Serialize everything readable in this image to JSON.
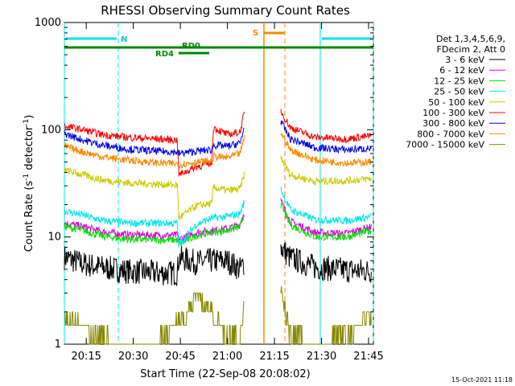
{
  "chart_data": {
    "type": "line",
    "title": "RHESSI Observing Summary Count Rates",
    "xlabel": "Start Time (22-Sep-08 20:08:02)",
    "ylabel_main": "Count Rate (s",
    "ylabel_sup1": "-1",
    "ylabel_mid": " detector",
    "ylabel_sup2": "-1",
    "ylabel_end": ")",
    "y_scale": "log",
    "ylim": [
      1,
      1000
    ],
    "xlim_minutes": [
      0,
      98.5
    ],
    "x_ticks": [
      {
        "label": "20:15",
        "t": 6.97
      },
      {
        "label": "20:30",
        "t": 21.97
      },
      {
        "label": "20:45",
        "t": 36.97
      },
      {
        "label": "21:00",
        "t": 51.97
      },
      {
        "label": "21:15",
        "t": 66.97
      },
      {
        "label": "21:30",
        "t": 81.97
      },
      {
        "label": "21:45",
        "t": 96.97
      }
    ],
    "y_ticks": [
      {
        "label": "1",
        "v": 1
      },
      {
        "label": "10",
        "v": 10
      },
      {
        "label": "100",
        "v": 100
      },
      {
        "label": "1000",
        "v": 1000
      }
    ],
    "legend_header": [
      "Det 1,3,4,5,6,9,",
      "FDecim 2, Att 0"
    ],
    "series": [
      {
        "name": "3 - 6 keV",
        "color": "#000000",
        "points": [
          [
            0,
            6.5
          ],
          [
            6,
            5.6
          ],
          [
            12,
            5.2
          ],
          [
            20,
            4.8
          ],
          [
            30,
            4.6
          ],
          [
            36,
            4.6
          ],
          [
            36.5,
            6.4
          ],
          [
            42,
            5.8
          ],
          [
            47,
            6.0
          ],
          [
            52,
            6.0
          ],
          [
            56,
            5.0
          ],
          [
            57.5,
            5.8
          ],
          [
            59,
            null
          ],
          [
            68.5,
            null
          ],
          [
            69,
            8
          ],
          [
            72,
            6.4
          ],
          [
            80,
            5.2
          ],
          [
            90,
            4.9
          ],
          [
            98,
            4.8
          ]
        ]
      },
      {
        "name": "6 - 12 keV",
        "color": "#dd00dd",
        "points": [
          [
            0,
            13.5
          ],
          [
            6,
            12.5
          ],
          [
            12,
            11.2
          ],
          [
            20,
            10.5
          ],
          [
            30,
            10.4
          ],
          [
            36,
            10.4
          ],
          [
            36.5,
            9.5
          ],
          [
            42,
            11
          ],
          [
            47,
            11.5
          ],
          [
            52,
            12
          ],
          [
            56,
            13
          ],
          [
            57.5,
            18
          ],
          [
            59,
            null
          ],
          [
            68.5,
            null
          ],
          [
            69,
            22
          ],
          [
            72,
            14
          ],
          [
            80,
            11
          ],
          [
            90,
            10.8
          ],
          [
            98,
            12.5
          ]
        ]
      },
      {
        "name": "12 - 25 keV",
        "color": "#00dd00",
        "points": [
          [
            0,
            12.5
          ],
          [
            6,
            11.5
          ],
          [
            12,
            10.2
          ],
          [
            20,
            9.5
          ],
          [
            30,
            9.4
          ],
          [
            36,
            9.4
          ],
          [
            36.5,
            8.5
          ],
          [
            42,
            10.3
          ],
          [
            47,
            11
          ],
          [
            52,
            11.5
          ],
          [
            56,
            12.5
          ],
          [
            57.5,
            17
          ],
          [
            59,
            null
          ],
          [
            68.5,
            null
          ],
          [
            69,
            20
          ],
          [
            72,
            13
          ],
          [
            80,
            10
          ],
          [
            90,
            10
          ],
          [
            98,
            11.5
          ]
        ]
      },
      {
        "name": "25 - 50 keV",
        "color": "#00e6e6",
        "points": [
          [
            0,
            17.5
          ],
          [
            6,
            16
          ],
          [
            12,
            14.2
          ],
          [
            20,
            13.5
          ],
          [
            30,
            13.4
          ],
          [
            36,
            13.4
          ],
          [
            36.5,
            8.5
          ],
          [
            42,
            13
          ],
          [
            47,
            15
          ],
          [
            52,
            15.5
          ],
          [
            56,
            16.5
          ],
          [
            57.5,
            22
          ],
          [
            59,
            null
          ],
          [
            68.5,
            null
          ],
          [
            69,
            28
          ],
          [
            72,
            18
          ],
          [
            80,
            14.5
          ],
          [
            90,
            14.2
          ],
          [
            98,
            15.5
          ]
        ]
      },
      {
        "name": "50 - 100 keV",
        "color": "#cccc00",
        "points": [
          [
            0,
            42
          ],
          [
            6,
            38
          ],
          [
            12,
            34
          ],
          [
            20,
            32
          ],
          [
            30,
            31
          ],
          [
            36,
            30.5
          ],
          [
            36.5,
            15
          ],
          [
            42,
            19.5
          ],
          [
            47,
            20.5
          ],
          [
            47.5,
            29
          ],
          [
            52,
            27
          ],
          [
            56,
            28
          ],
          [
            57.5,
            40
          ],
          [
            59,
            null
          ],
          [
            68.5,
            null
          ],
          [
            69,
            55
          ],
          [
            72,
            38
          ],
          [
            80,
            33
          ],
          [
            90,
            33.5
          ],
          [
            98,
            35
          ]
        ]
      },
      {
        "name": "100 - 300 keV",
        "color": "#ff0000",
        "points": [
          [
            0,
            108
          ],
          [
            6,
            100
          ],
          [
            12,
            90
          ],
          [
            20,
            85
          ],
          [
            30,
            82
          ],
          [
            36,
            80
          ],
          [
            36.5,
            38
          ],
          [
            42,
            45
          ],
          [
            47,
            49
          ],
          [
            47.5,
            105
          ],
          [
            52,
            90
          ],
          [
            56,
            95
          ],
          [
            57.5,
            150
          ],
          [
            59,
            null
          ],
          [
            68.5,
            null
          ],
          [
            69,
            150
          ],
          [
            72,
            105
          ],
          [
            80,
            85
          ],
          [
            90,
            82
          ],
          [
            98,
            88
          ]
        ]
      },
      {
        "name": "300 - 800 keV",
        "color": "#0000ee",
        "points": [
          [
            0,
            92
          ],
          [
            6,
            80
          ],
          [
            12,
            72
          ],
          [
            20,
            66
          ],
          [
            30,
            63
          ],
          [
            36,
            62
          ],
          [
            36.5,
            60
          ],
          [
            42,
            63
          ],
          [
            47,
            65
          ],
          [
            47.5,
            72
          ],
          [
            52,
            70
          ],
          [
            56,
            75
          ],
          [
            57.5,
            110
          ],
          [
            59,
            null
          ],
          [
            68.5,
            null
          ],
          [
            69,
            120
          ],
          [
            72,
            82
          ],
          [
            80,
            68
          ],
          [
            90,
            65
          ],
          [
            98,
            67
          ]
        ]
      },
      {
        "name": "800 - 7000 keV",
        "color": "#ff8800",
        "points": [
          [
            0,
            70
          ],
          [
            6,
            62
          ],
          [
            12,
            56
          ],
          [
            20,
            52
          ],
          [
            30,
            49
          ],
          [
            36,
            48
          ],
          [
            36.5,
            47
          ],
          [
            42,
            50
          ],
          [
            47,
            51
          ],
          [
            47.5,
            56
          ],
          [
            52,
            55
          ],
          [
            56,
            60
          ],
          [
            57.5,
            88
          ],
          [
            59,
            null
          ],
          [
            68.5,
            null
          ],
          [
            69,
            95
          ],
          [
            72,
            65
          ],
          [
            80,
            52
          ],
          [
            90,
            49
          ],
          [
            98,
            50
          ]
        ]
      },
      {
        "name": "7000 - 15000 keV",
        "color": "#888800",
        "points": [
          [
            0,
            2
          ],
          [
            6,
            1.7
          ],
          [
            12,
            1.3
          ],
          [
            20,
            1.1
          ],
          [
            30,
            1.2
          ],
          [
            34,
            1.6
          ],
          [
            38,
            2
          ],
          [
            42,
            3
          ],
          [
            46,
            2.6
          ],
          [
            50,
            1.6
          ],
          [
            56,
            1.2
          ],
          [
            57.5,
            3.2
          ],
          [
            59,
            null
          ],
          [
            68.5,
            null
          ],
          [
            69,
            3.5
          ],
          [
            72,
            1.4
          ],
          [
            80,
            1.1
          ],
          [
            90,
            1.4
          ],
          [
            98,
            2
          ]
        ]
      }
    ],
    "annotations": {
      "N_label": "N",
      "S_label": "S",
      "RD0_label": "RD0",
      "RD4_label": "RD4"
    },
    "timestamp": "15-Oct-2021 11:18"
  }
}
